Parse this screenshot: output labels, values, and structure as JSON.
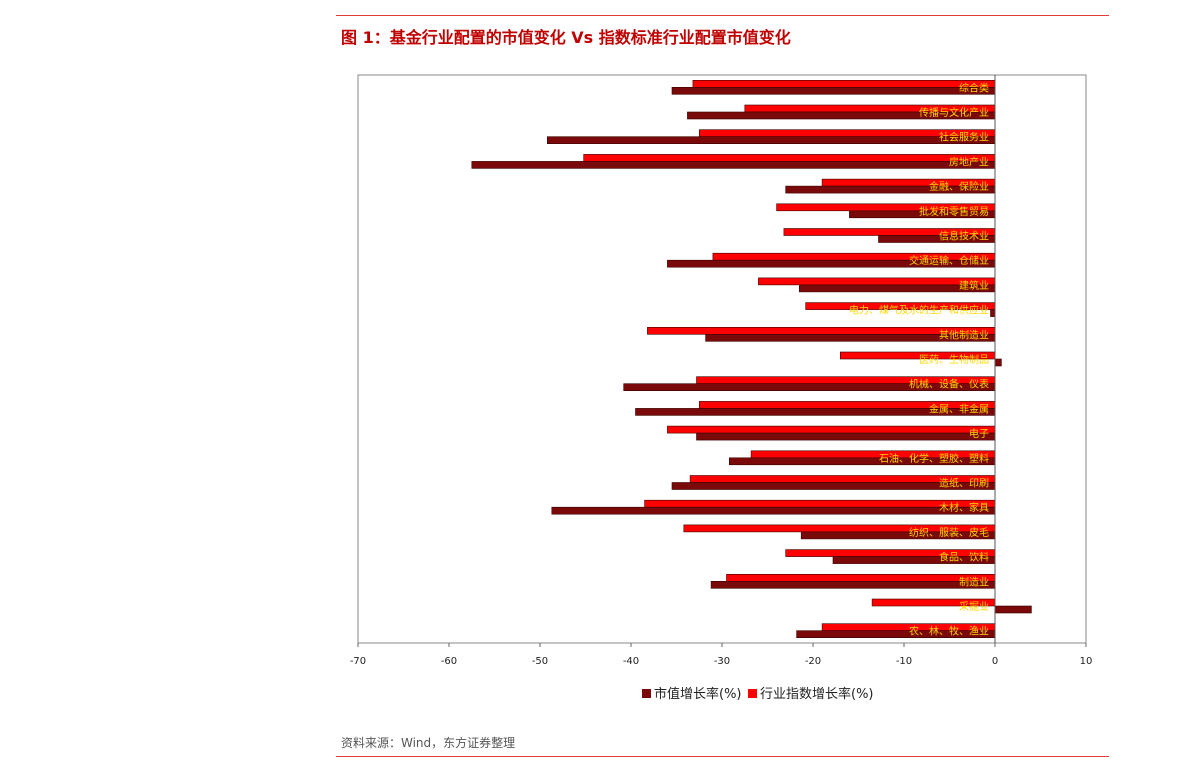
{
  "figure": {
    "title": "图 1：基金行业配置的市值变化 Vs 指数标准行业配置市值变化",
    "source": "资料来源：Wind，东方证券整理"
  },
  "colors": {
    "series_market_value": "#7a0a0a",
    "series_index": "#ff0000",
    "rule": "#e03c3c",
    "title": "#c00000",
    "category_label": "#ffd700"
  },
  "chart_data": {
    "type": "bar",
    "orientation": "horizontal",
    "title": "",
    "xlabel": "",
    "ylabel": "",
    "xlim": [
      -70,
      10
    ],
    "xticks": [
      -70,
      -60,
      -50,
      -40,
      -30,
      -20,
      -10,
      0,
      10
    ],
    "grid": false,
    "legend_position": "bottom",
    "categories": [
      "综合类",
      "传播与文化产业",
      "社会服务业",
      "房地产业",
      "金融、保险业",
      "批发和零售贸易",
      "信息技术业",
      "交通运输、仓储业",
      "建筑业",
      "电力、煤气及水的生产和供应业",
      "其他制造业",
      "医药、生物制品",
      "机械、设备、仪表",
      "金属、非金属",
      "电子",
      "石油、化学、塑胶、塑料",
      "造纸、印刷",
      "木材、家具",
      "纺织、服装、皮毛",
      "食品、饮料",
      "制造业",
      "采掘业",
      "农、林、牧、渔业"
    ],
    "series": [
      {
        "name": "市值增长率(%)",
        "values": [
          -35.5,
          -33.8,
          -49.2,
          -57.5,
          -23,
          -16,
          -12.8,
          -36,
          -21.5,
          -0.5,
          -31.8,
          0.7,
          -40.8,
          -39.5,
          -32.8,
          -29.2,
          -35.5,
          -48.7,
          -21.3,
          -17.8,
          -31.2,
          4,
          -21.8
        ]
      },
      {
        "name": "行业指数增长率(%)",
        "values": [
          -33.2,
          -27.5,
          -32.5,
          -45.2,
          -19,
          -24,
          -23.2,
          -31,
          -26,
          -20.8,
          -38.2,
          -17,
          -32.8,
          -32.5,
          -36,
          -26.8,
          -33.5,
          -38.5,
          -34.2,
          -23,
          -29.5,
          -13.5,
          -19
        ]
      }
    ]
  }
}
